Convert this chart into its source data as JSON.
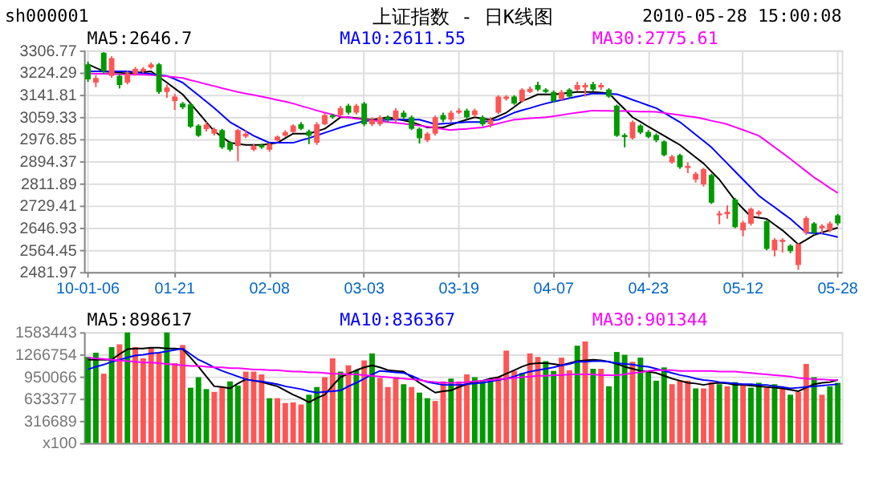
{
  "chart_data": [
    {
      "type": "candlestick",
      "title": "上证指数 - 日K线图",
      "annotations": [
        "sh000001",
        "2010-05-28 15:00:08"
      ],
      "categories": [
        "10-01-06",
        null,
        null,
        null,
        null,
        null,
        null,
        null,
        null,
        null,
        null,
        "01-21",
        null,
        null,
        null,
        null,
        null,
        null,
        null,
        null,
        null,
        null,
        null,
        "02-08",
        null,
        null,
        null,
        null,
        null,
        null,
        null,
        null,
        null,
        null,
        null,
        "03-03",
        null,
        null,
        null,
        null,
        null,
        null,
        null,
        null,
        null,
        null,
        null,
        "03-19",
        null,
        null,
        null,
        null,
        null,
        null,
        null,
        null,
        null,
        null,
        null,
        "04-07",
        null,
        null,
        null,
        null,
        null,
        null,
        null,
        null,
        null,
        null,
        null,
        "04-23",
        null,
        null,
        null,
        null,
        null,
        null,
        null,
        null,
        null,
        null,
        null,
        "05-12",
        null,
        null,
        null,
        null,
        null,
        null,
        null,
        null,
        null,
        null,
        null,
        "05-28"
      ],
      "ohlc": [
        [
          3255,
          3265,
          3190,
          3199
        ],
        [
          3187,
          3215,
          3170,
          3204
        ],
        [
          3298,
          3300,
          3220,
          3229
        ],
        [
          3212,
          3285,
          3205,
          3278
        ],
        [
          3212,
          3220,
          3165,
          3178
        ],
        [
          3187,
          3230,
          3180,
          3221
        ],
        [
          3221,
          3245,
          3212,
          3238
        ],
        [
          3229,
          3245,
          3222,
          3238
        ],
        [
          3243,
          3262,
          3238,
          3255
        ],
        [
          3255,
          3260,
          3145,
          3152
        ],
        [
          3152,
          3180,
          3130,
          3169
        ],
        [
          3118,
          3145,
          3085,
          3135
        ],
        [
          3109,
          3115,
          3088,
          3095
        ],
        [
          3106,
          3110,
          3018,
          3023
        ],
        [
          3027,
          3032,
          2985,
          2989
        ],
        [
          3014,
          3040,
          3005,
          3031
        ],
        [
          2997,
          3020,
          2990,
          3014
        ],
        [
          3010,
          3015,
          2940,
          2946
        ],
        [
          2963,
          2970,
          2930,
          2937
        ],
        [
          2951,
          3015,
          2894,
          3010
        ],
        [
          2986,
          3010,
          2980,
          2997
        ],
        [
          2937,
          2958,
          2932,
          2951
        ],
        [
          2955,
          2960,
          2940,
          2946
        ],
        [
          2937,
          2962,
          2930,
          2958
        ],
        [
          2972,
          2990,
          2968,
          2986
        ],
        [
          2989,
          3010,
          2985,
          3003
        ],
        [
          3003,
          3032,
          3000,
          3027
        ],
        [
          3032,
          3040,
          3010,
          3015
        ],
        [
          3006,
          3012,
          2958,
          2989
        ],
        [
          2963,
          3040,
          2955,
          3032
        ],
        [
          3032,
          3075,
          3028,
          3066
        ],
        [
          3066,
          3070,
          3052,
          3058
        ],
        [
          3066,
          3100,
          3060,
          3092
        ],
        [
          3101,
          3108,
          3068,
          3075
        ],
        [
          3075,
          3108,
          3068,
          3101
        ],
        [
          3109,
          3115,
          3025,
          3032
        ],
        [
          3032,
          3058,
          3025,
          3049
        ],
        [
          3032,
          3065,
          3025,
          3058
        ],
        [
          3058,
          3065,
          3040,
          3049
        ],
        [
          3049,
          3092,
          3040,
          3083
        ],
        [
          3075,
          3083,
          3050,
          3058
        ],
        [
          3058,
          3065,
          3010,
          3015
        ],
        [
          3015,
          3020,
          2960,
          2980
        ],
        [
          2972,
          3003,
          2965,
          2997
        ],
        [
          2997,
          3065,
          2990,
          3058
        ],
        [
          3066,
          3075,
          3040,
          3049
        ],
        [
          3049,
          3083,
          3040,
          3075
        ],
        [
          3075,
          3092,
          3070,
          3083
        ],
        [
          3083,
          3090,
          3050,
          3058
        ],
        [
          3066,
          3090,
          3058,
          3083
        ],
        [
          3058,
          3065,
          3025,
          3032
        ],
        [
          3032,
          3058,
          3020,
          3049
        ],
        [
          3075,
          3140,
          3070,
          3135
        ],
        [
          3126,
          3140,
          3120,
          3135
        ],
        [
          3135,
          3140,
          3104,
          3109
        ],
        [
          3118,
          3166,
          3112,
          3161
        ],
        [
          3152,
          3172,
          3148,
          3164
        ],
        [
          3178,
          3190,
          3155,
          3161
        ],
        [
          3161,
          3166,
          3148,
          3152
        ],
        [
          3152,
          3158,
          3112,
          3118
        ],
        [
          3126,
          3160,
          3120,
          3152
        ],
        [
          3161,
          3166,
          3128,
          3135
        ],
        [
          3161,
          3190,
          3155,
          3178
        ],
        [
          3169,
          3186,
          3135,
          3178
        ],
        [
          3181,
          3190,
          3155,
          3161
        ],
        [
          3169,
          3186,
          3160,
          3178
        ],
        [
          3161,
          3166,
          3130,
          3135
        ],
        [
          3101,
          3105,
          2985,
          2989
        ],
        [
          2992,
          2998,
          2946,
          2984
        ],
        [
          2980,
          3046,
          2975,
          3040
        ],
        [
          3027,
          3032,
          2995,
          3001
        ],
        [
          3003,
          3010,
          2980,
          2985
        ],
        [
          2992,
          2998,
          2965,
          2972
        ],
        [
          2968,
          2972,
          2912,
          2917
        ],
        [
          2890,
          2918,
          2885,
          2912
        ],
        [
          2917,
          2922,
          2866,
          2872
        ],
        [
          2869,
          2890,
          2850,
          2877
        ],
        [
          2826,
          2855,
          2815,
          2848
        ],
        [
          2808,
          2870,
          2800,
          2865
        ],
        [
          2843,
          2848,
          2735,
          2740
        ],
        [
          2693,
          2710,
          2660,
          2700
        ],
        [
          2697,
          2730,
          2680,
          2706
        ],
        [
          2752,
          2758,
          2645,
          2649
        ],
        [
          2637,
          2672,
          2615,
          2666
        ],
        [
          2662,
          2722,
          2655,
          2717
        ],
        [
          2697,
          2712,
          2690,
          2706
        ],
        [
          2671,
          2676,
          2563,
          2568
        ],
        [
          2563,
          2608,
          2540,
          2602
        ],
        [
          2594,
          2608,
          2555,
          2602
        ],
        [
          2580,
          2585,
          2552,
          2560
        ],
        [
          2508,
          2590,
          2490,
          2585
        ],
        [
          2628,
          2690,
          2620,
          2683
        ],
        [
          2663,
          2668,
          2620,
          2628
        ],
        [
          2645,
          2660,
          2625,
          2654
        ],
        [
          2637,
          2670,
          2630,
          2663
        ],
        [
          2693,
          2698,
          2655,
          2663
        ]
      ],
      "colors": [
        "#009900",
        "#ff5555",
        "#009900",
        "#ff5555",
        "#009900",
        "#ff5555",
        "#ff5555",
        "#ff5555",
        "#ff5555",
        "#009900",
        "#ff5555",
        "#ff5555",
        "#009900",
        "#009900",
        "#009900",
        "#ff5555",
        "#ff5555",
        "#009900",
        "#009900",
        "#ff5555",
        "#ff5555",
        "#ff5555",
        "#009900",
        "#ff5555",
        "#ff5555",
        "#ff5555",
        "#ff5555",
        "#009900",
        "#009900",
        "#ff5555",
        "#ff5555",
        "#009900",
        "#ff5555",
        "#009900",
        "#ff5555",
        "#009900",
        "#ff5555",
        "#ff5555",
        "#009900",
        "#ff5555",
        "#009900",
        "#009900",
        "#009900",
        "#ff5555",
        "#ff5555",
        "#009900",
        "#ff5555",
        "#ff5555",
        "#009900",
        "#ff5555",
        "#009900",
        "#ff5555",
        "#ff5555",
        "#ff5555",
        "#009900",
        "#ff5555",
        "#ff5555",
        "#009900",
        "#009900",
        "#009900",
        "#ff5555",
        "#009900",
        "#ff5555",
        "#ff5555",
        "#009900",
        "#ff5555",
        "#009900",
        "#009900",
        "#009900",
        "#ff5555",
        "#009900",
        "#009900",
        "#009900",
        "#009900",
        "#ff5555",
        "#009900",
        "#ff5555",
        "#ff5555",
        "#ff5555",
        "#009900",
        "#ff5555",
        "#ff5555",
        "#009900",
        "#ff5555",
        "#ff5555",
        "#ff5555",
        "#009900",
        "#ff5555",
        "#ff5555",
        "#009900",
        "#ff5555",
        "#ff5555",
        "#009900",
        "#ff5555",
        "#ff5555",
        "#009900"
      ],
      "ylim": [
        2481.97,
        3306.77
      ],
      "yticks": [
        2481.97,
        2564.45,
        2646.93,
        2729.41,
        2811.89,
        2894.37,
        2976.85,
        3059.33,
        3141.81,
        3224.29,
        3306.77
      ],
      "grid": true,
      "legend": "top",
      "series": [
        {
          "name": "MA5:2646.7",
          "type": "line",
          "color": "#000000",
          "values": [
            3255,
            3242,
            3229,
            3226,
            3224,
            3221,
            3224,
            3226,
            3229,
            3208,
            3187,
            3165,
            3143,
            3109,
            3075,
            3040,
            3006,
            2985,
            2963,
            2959,
            2955,
            2955,
            2955,
            2959,
            2963,
            2980,
            2997,
            2997,
            2997,
            3006,
            3015,
            3036,
            3058,
            3058,
            3055,
            3052,
            3049,
            3053,
            3058,
            3052,
            3046,
            3040,
            3030,
            3020,
            3020,
            3020,
            3030,
            3040,
            3049,
            3058,
            3053,
            3049,
            3062,
            3075,
            3096,
            3118,
            3130,
            3143,
            3143,
            3143,
            3146,
            3149,
            3152,
            3152,
            3152,
            3150,
            3147,
            3117,
            3088,
            3058,
            3041,
            3023,
            3006,
            2989,
            2972,
            2955,
            2932,
            2909,
            2886,
            2856,
            2826,
            2787,
            2748,
            2718,
            2688,
            2684,
            2680,
            2658,
            2637,
            2611,
            2585,
            2602,
            2620,
            2629,
            2638,
            2647
          ]
        },
        {
          "name": "MA10:2611.55",
          "type": "line",
          "color": "#0000ff",
          "values": [
            3229,
            3229,
            3229,
            3229,
            3229,
            3229,
            3226,
            3222,
            3219,
            3215,
            3212,
            3200,
            3187,
            3163,
            3140,
            3116,
            3092,
            3066,
            3040,
            3023,
            3006,
            2989,
            2976,
            2963,
            2963,
            2963,
            2963,
            2972,
            2980,
            2990,
            3000,
            3010,
            3020,
            3028,
            3036,
            3044,
            3046,
            3047,
            3049,
            3049,
            3049,
            3049,
            3049,
            3041,
            3032,
            3034,
            3036,
            3038,
            3040,
            3040,
            3040,
            3045,
            3049,
            3062,
            3075,
            3084,
            3092,
            3101,
            3109,
            3116,
            3122,
            3129,
            3135,
            3141,
            3147,
            3146,
            3145,
            3144,
            3134,
            3123,
            3113,
            3102,
            3092,
            3075,
            3057,
            3040,
            3017,
            2993,
            2970,
            2946,
            2916,
            2886,
            2856,
            2826,
            2796,
            2766,
            2744,
            2723,
            2701,
            2680,
            2654,
            2628,
            2627,
            2625,
            2619,
            2612
          ]
        },
        {
          "name": "MA30:2775.61",
          "type": "line",
          "color": "#ff00ff",
          "values": [
            3221,
            3220,
            3220,
            3219,
            3218,
            3217,
            3217,
            3216,
            3215,
            3212,
            3210,
            3207,
            3204,
            3196,
            3189,
            3181,
            3174,
            3166,
            3159,
            3152,
            3146,
            3141,
            3135,
            3129,
            3122,
            3116,
            3109,
            3100,
            3092,
            3083,
            3075,
            3068,
            3060,
            3057,
            3053,
            3050,
            3047,
            3043,
            3040,
            3037,
            3034,
            3030,
            3027,
            3023,
            3019,
            3014,
            3010,
            3013,
            3015,
            3018,
            3020,
            3027,
            3035,
            3042,
            3049,
            3051,
            3054,
            3056,
            3058,
            3062,
            3066,
            3071,
            3075,
            3079,
            3083,
            3082,
            3082,
            3081,
            3081,
            3080,
            3079,
            3079,
            3078,
            3074,
            3070,
            3066,
            3062,
            3058,
            3052,
            3045,
            3039,
            3032,
            3021,
            3011,
            3000,
            2989,
            2968,
            2946,
            2925,
            2903,
            2880,
            2857,
            2834,
            2815,
            2795,
            2776
          ]
        }
      ]
    },
    {
      "type": "bar",
      "categories": [
        null,
        null,
        null,
        null,
        null,
        null,
        null,
        null,
        null,
        null,
        null,
        null,
        null,
        null,
        null,
        null,
        null,
        null,
        null,
        null,
        null,
        null,
        null,
        null,
        null,
        null,
        null,
        null,
        null,
        null,
        null,
        null,
        null,
        null,
        null,
        null,
        null,
        null,
        null,
        null,
        null,
        null,
        null,
        null,
        null,
        null,
        null,
        null,
        null,
        null,
        null,
        null,
        null,
        null,
        null,
        null,
        null,
        null,
        null,
        null,
        null,
        null,
        null,
        null,
        null,
        null,
        null,
        null,
        null,
        null,
        null,
        null,
        null,
        null,
        null,
        null,
        null,
        null,
        null,
        null,
        null,
        null,
        null,
        null,
        null,
        null,
        null,
        null,
        null,
        null,
        null,
        null,
        null,
        null,
        null,
        null
      ],
      "values": [
        1230000,
        1290000,
        990000,
        1370000,
        1410000,
        1580000,
        1370000,
        1210000,
        1370000,
        1280000,
        1580000,
        1140000,
        1400000,
        790000,
        940000,
        770000,
        730000,
        800000,
        880000,
        820000,
        1020000,
        1020000,
        980000,
        640000,
        640000,
        570000,
        580000,
        550000,
        690000,
        800000,
        940000,
        1210000,
        1020000,
        1110000,
        1040000,
        1180000,
        1280000,
        930000,
        800000,
        940000,
        840000,
        800000,
        720000,
        640000,
        600000,
        880000,
        920000,
        880000,
        980000,
        940000,
        890000,
        890000,
        940000,
        1320000,
        1030000,
        1000000,
        1280000,
        1230000,
        1170000,
        1030000,
        1220000,
        1040000,
        1390000,
        1450000,
        1060000,
        1060000,
        810000,
        1300000,
        1260000,
        1160000,
        1220000,
        1030000,
        890000,
        1080000,
        840000,
        890000,
        890000,
        780000,
        780000,
        870000,
        840000,
        810000,
        870000,
        840000,
        790000,
        860000,
        790000,
        840000,
        790000,
        690000,
        730000,
        1130000,
        940000,
        690000,
        810000,
        860000
      ],
      "colors": [
        "#009900",
        "#009900",
        "#ff5555",
        "#009900",
        "#ff5555",
        "#009900",
        "#ff5555",
        "#ff5555",
        "#ff5555",
        "#ff5555",
        "#009900",
        "#ff5555",
        "#ff5555",
        "#009900",
        "#009900",
        "#009900",
        "#ff5555",
        "#ff5555",
        "#009900",
        "#009900",
        "#ff5555",
        "#ff5555",
        "#ff5555",
        "#009900",
        "#ff5555",
        "#ff5555",
        "#ff5555",
        "#ff5555",
        "#009900",
        "#009900",
        "#ff5555",
        "#ff5555",
        "#009900",
        "#ff5555",
        "#009900",
        "#ff5555",
        "#009900",
        "#ff5555",
        "#ff5555",
        "#ff5555",
        "#009900",
        "#ff5555",
        "#009900",
        "#009900",
        "#ff5555",
        "#ff5555",
        "#009900",
        "#ff5555",
        "#ff5555",
        "#009900",
        "#009900",
        "#009900",
        "#ff5555",
        "#ff5555",
        "#ff5555",
        "#009900",
        "#ff5555",
        "#ff5555",
        "#009900",
        "#009900",
        "#ff5555",
        "#ff5555",
        "#009900",
        "#ff5555",
        "#009900",
        "#ff5555",
        "#009900",
        "#009900",
        "#009900",
        "#ff5555",
        "#009900",
        "#009900",
        "#009900",
        "#009900",
        "#ff5555",
        "#ff5555",
        "#ff5555",
        "#009900",
        "#ff5555",
        "#ff5555",
        "#009900",
        "#ff5555",
        "#009900",
        "#ff5555",
        "#009900",
        "#009900",
        "#ff5555",
        "#009900",
        "#ff5555",
        "#009900",
        "#ff5555",
        "#ff5555",
        "#009900",
        "#ff5555",
        "#009900",
        "#009900"
      ],
      "ylim": [
        0,
        1583443
      ],
      "yticks": [
        {
          "value": 0,
          "label": "x100"
        },
        316689,
        633377,
        950066,
        1266754,
        1583443
      ],
      "grid": "y",
      "legend": "top",
      "tick_labels": "y",
      "series": [
        {
          "name": "MA5:898617",
          "type": "line",
          "color": "#000000",
          "values": [
            1190000,
            1190000,
            1190000,
            1190000,
            1270000,
            1340000,
            1350000,
            1350000,
            1360000,
            1360000,
            1350000,
            1350000,
            1340000,
            1220000,
            1090000,
            950000,
            810000,
            800000,
            780000,
            850000,
            910000,
            890000,
            870000,
            840000,
            810000,
            750000,
            690000,
            640000,
            580000,
            640000,
            690000,
            820000,
            940000,
            990000,
            1040000,
            1080000,
            1110000,
            1080000,
            1040000,
            1030000,
            1020000,
            940000,
            860000,
            790000,
            720000,
            740000,
            750000,
            800000,
            840000,
            870000,
            890000,
            920000,
            940000,
            990000,
            1040000,
            1090000,
            1130000,
            1140000,
            1140000,
            1130000,
            1110000,
            1140000,
            1170000,
            1180000,
            1190000,
            1180000,
            1160000,
            1130000,
            1090000,
            1060000,
            1030000,
            1020000,
            1000000,
            960000,
            920000,
            890000,
            860000,
            850000,
            830000,
            850000,
            860000,
            850000,
            830000,
            830000,
            820000,
            810000,
            800000,
            790000,
            780000,
            760000,
            740000,
            790000,
            840000,
            860000,
            870000,
            900000
          ]
        },
        {
          "name": "MA10:836367",
          "type": "line",
          "color": "#0000ff",
          "values": [
            1050000,
            1090000,
            1120000,
            1160000,
            1190000,
            1220000,
            1250000,
            1260000,
            1280000,
            1290000,
            1310000,
            1330000,
            1350000,
            1270000,
            1190000,
            1140000,
            1080000,
            1030000,
            990000,
            950000,
            910000,
            890000,
            880000,
            860000,
            840000,
            810000,
            790000,
            770000,
            740000,
            720000,
            730000,
            740000,
            750000,
            810000,
            860000,
            920000,
            980000,
            1030000,
            1020000,
            1010000,
            1000000,
            960000,
            910000,
            870000,
            850000,
            830000,
            830000,
            830000,
            840000,
            850000,
            860000,
            880000,
            900000,
            920000,
            950000,
            990000,
            1020000,
            1040000,
            1060000,
            1080000,
            1110000,
            1130000,
            1160000,
            1160000,
            1170000,
            1170000,
            1160000,
            1140000,
            1130000,
            1120000,
            1100000,
            1090000,
            1060000,
            1030000,
            1000000,
            970000,
            950000,
            920000,
            900000,
            890000,
            870000,
            860000,
            850000,
            840000,
            840000,
            830000,
            830000,
            810000,
            800000,
            780000,
            790000,
            800000,
            810000,
            820000,
            830000,
            840000
          ]
        },
        {
          "name": "MA30:901344",
          "type": "line",
          "color": "#ff00ff",
          "values": [
            1220000,
            1210000,
            1200000,
            1190000,
            1180000,
            1170000,
            1160000,
            1150000,
            1150000,
            1140000,
            1130000,
            1120000,
            1110000,
            1100000,
            1100000,
            1090000,
            1080000,
            1080000,
            1070000,
            1070000,
            1060000,
            1050000,
            1050000,
            1040000,
            1040000,
            1030000,
            1020000,
            1020000,
            1010000,
            1010000,
            1000000,
            990000,
            990000,
            980000,
            980000,
            970000,
            960000,
            950000,
            940000,
            930000,
            920000,
            910000,
            900000,
            880000,
            870000,
            860000,
            860000,
            860000,
            870000,
            880000,
            890000,
            900000,
            910000,
            920000,
            930000,
            940000,
            950000,
            960000,
            960000,
            970000,
            970000,
            980000,
            980000,
            980000,
            980000,
            970000,
            970000,
            970000,
            980000,
            1000000,
            1010000,
            1030000,
            1040000,
            1040000,
            1040000,
            1030000,
            1030000,
            1030000,
            1030000,
            1030000,
            1020000,
            1020000,
            1020000,
            1010000,
            1000000,
            990000,
            980000,
            970000,
            960000,
            950000,
            930000,
            920000,
            910000,
            910000,
            900000,
            900000
          ]
        }
      ]
    }
  ]
}
